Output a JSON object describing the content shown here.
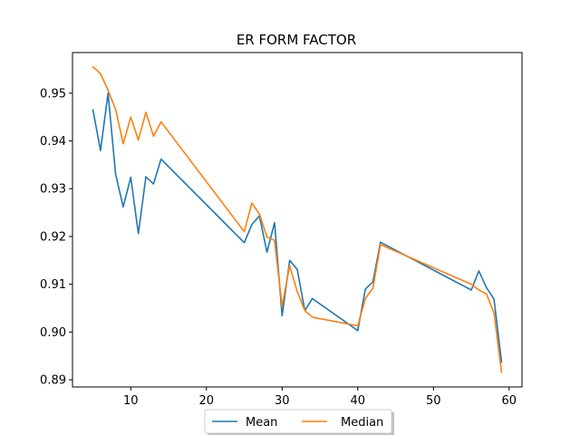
{
  "chart_data": {
    "type": "line",
    "title": "ER FORM FACTOR",
    "xlabel": "",
    "ylabel": "",
    "xlim": [
      2.3,
      61.7
    ],
    "ylim": [
      0.8885,
      0.9585
    ],
    "xticks": [
      10,
      20,
      30,
      40,
      50,
      60
    ],
    "xtick_labels": [
      "10",
      "20",
      "30",
      "40",
      "50",
      "60"
    ],
    "yticks": [
      0.89,
      0.9,
      0.91,
      0.92,
      0.93,
      0.94,
      0.95
    ],
    "ytick_labels": [
      "0.89",
      "0.90",
      "0.91",
      "0.92",
      "0.93",
      "0.94",
      "0.95"
    ],
    "grid": false,
    "legend_position": "bottom-center",
    "series": [
      {
        "name": "Mean",
        "color": "#1f77b4",
        "x": [
          5,
          6,
          7,
          8,
          9,
          10,
          11,
          12,
          13,
          14,
          25,
          26,
          27,
          28,
          29,
          30,
          31,
          32,
          33,
          34,
          40,
          41,
          42,
          43,
          55,
          56,
          57,
          58,
          59
        ],
        "y": [
          0.9465,
          0.938,
          0.95,
          0.933,
          0.9262,
          0.9324,
          0.9206,
          0.9325,
          0.931,
          0.9362,
          0.9187,
          0.9225,
          0.9243,
          0.9167,
          0.9229,
          0.9034,
          0.915,
          0.9131,
          0.9045,
          0.907,
          0.9003,
          0.909,
          0.9105,
          0.9188,
          0.9088,
          0.9128,
          0.9093,
          0.9069,
          0.8937
        ]
      },
      {
        "name": "Median",
        "color": "#ff7f0e",
        "x": [
          5,
          6,
          7,
          8,
          9,
          10,
          11,
          12,
          13,
          14,
          25,
          26,
          27,
          28,
          29,
          30,
          31,
          32,
          33,
          34,
          40,
          41,
          42,
          43,
          55,
          56,
          57,
          58,
          59
        ],
        "y": [
          0.9555,
          0.9541,
          0.9506,
          0.9466,
          0.9394,
          0.945,
          0.9402,
          0.946,
          0.941,
          0.944,
          0.921,
          0.927,
          0.9247,
          0.9199,
          0.9192,
          0.9054,
          0.9139,
          0.9085,
          0.9045,
          0.9031,
          0.9013,
          0.907,
          0.9092,
          0.9183,
          0.91,
          0.9088,
          0.908,
          0.904,
          0.8916
        ]
      }
    ]
  }
}
